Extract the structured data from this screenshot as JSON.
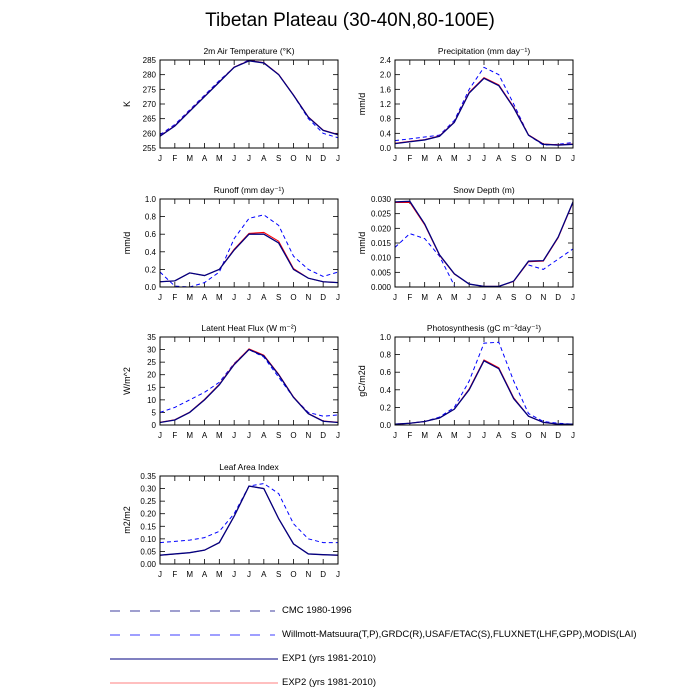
{
  "figure": {
    "title": "Tibetan Plateau (30-40N,80-100E)"
  },
  "chart_data": [
    {
      "type": "line",
      "title": "2m Air Temperature (°K)",
      "ylabel": "K",
      "ylim": [
        255,
        285
      ],
      "yticks": [
        255,
        260,
        265,
        270,
        275,
        280,
        285
      ],
      "yticklabels": [
        "255",
        "260",
        "265",
        "270",
        "275",
        "280",
        "285"
      ],
      "categories": [
        "J",
        "F",
        "M",
        "A",
        "M",
        "J",
        "J",
        "A",
        "S",
        "O",
        "N",
        "D",
        "J"
      ],
      "series": [
        {
          "name": "CMC 1980-1996",
          "values": [
            null,
            null,
            null,
            null,
            null,
            null,
            null,
            null,
            null,
            null,
            null,
            null,
            null
          ]
        },
        {
          "name": "Willmott-Matsuura(T,P),GRDC(R),USAF/ETAC(S),FLUXNET(LHF,GPP),MODIS(LAI)",
          "values": [
            259.5,
            263,
            268,
            273,
            278,
            282.5,
            285,
            284,
            280,
            273,
            265,
            260,
            258.5
          ]
        },
        {
          "name": "EXP1 (yrs 1981-2010)",
          "values": [
            259,
            262.5,
            267.5,
            272.5,
            277.5,
            282.5,
            284.7,
            284,
            280,
            273,
            265.5,
            261,
            259.5
          ]
        },
        {
          "name": "EXP2 (yrs 1981-2010)",
          "values": [
            259.1,
            262.6,
            267.6,
            272.6,
            277.6,
            282.6,
            284.8,
            284.1,
            280.1,
            273.1,
            265.6,
            261.1,
            259.6
          ]
        }
      ]
    },
    {
      "type": "line",
      "title": "Precipitation (mm day⁻¹)",
      "ylabel": "mm/d",
      "ylim": [
        0,
        2.4
      ],
      "yticks": [
        0,
        0.4,
        0.8,
        1.2,
        1.6,
        2.0,
        2.4
      ],
      "yticklabels": [
        "0.0",
        "0.4",
        "0.8",
        "1.2",
        "1.6",
        "2.0",
        "2.4"
      ],
      "categories": [
        "J",
        "F",
        "M",
        "A",
        "M",
        "J",
        "J",
        "A",
        "S",
        "O",
        "N",
        "D",
        "J"
      ],
      "series": [
        {
          "name": "CMC 1980-1996",
          "values": [
            null,
            null,
            null,
            null,
            null,
            null,
            null,
            null,
            null,
            null,
            null,
            null,
            null
          ]
        },
        {
          "name": "Willmott-Matsuura(T,P),GRDC(R),USAF/ETAC(S),FLUXNET(LHF,GPP),MODIS(LAI)",
          "values": [
            0.2,
            0.25,
            0.3,
            0.35,
            0.75,
            1.6,
            2.2,
            2.0,
            1.2,
            0.35,
            0.08,
            0.1,
            0.15
          ]
        },
        {
          "name": "EXP1 (yrs 1981-2010)",
          "values": [
            0.12,
            0.17,
            0.22,
            0.32,
            0.7,
            1.5,
            1.9,
            1.7,
            1.1,
            0.35,
            0.1,
            0.08,
            0.1
          ]
        },
        {
          "name": "EXP2 (yrs 1981-2010)",
          "values": [
            0.13,
            0.18,
            0.23,
            0.33,
            0.71,
            1.52,
            1.92,
            1.72,
            1.12,
            0.36,
            0.11,
            0.09,
            0.11
          ]
        }
      ]
    },
    {
      "type": "line",
      "title": "Runoff (mm day⁻¹)",
      "ylabel": "mm/d",
      "ylim": [
        0,
        1.0
      ],
      "yticks": [
        0,
        0.2,
        0.4,
        0.6,
        0.8,
        1.0
      ],
      "yticklabels": [
        "0.0",
        "0.2",
        "0.4",
        "0.6",
        "0.8",
        "1.0"
      ],
      "categories": [
        "J",
        "F",
        "M",
        "A",
        "M",
        "J",
        "J",
        "A",
        "S",
        "O",
        "N",
        "D",
        "J"
      ],
      "series": [
        {
          "name": "CMC 1980-1996",
          "values": [
            null,
            null,
            null,
            null,
            null,
            null,
            null,
            null,
            null,
            null,
            null,
            null,
            null
          ]
        },
        {
          "name": "Willmott-Matsuura(T,P),GRDC(R),USAF/ETAC(S),FLUXNET(LHF,GPP),MODIS(LAI)",
          "values": [
            0.17,
            0.01,
            0.0,
            0.05,
            0.17,
            0.55,
            0.78,
            0.82,
            0.7,
            0.35,
            0.2,
            0.12,
            0.17
          ]
        },
        {
          "name": "EXP1 (yrs 1981-2010)",
          "values": [
            0.06,
            0.07,
            0.16,
            0.13,
            0.2,
            0.42,
            0.6,
            0.6,
            0.5,
            0.2,
            0.1,
            0.06,
            0.05
          ]
        },
        {
          "name": "EXP2 (yrs 1981-2010)",
          "values": [
            0.06,
            0.07,
            0.16,
            0.13,
            0.2,
            0.43,
            0.61,
            0.62,
            0.52,
            0.21,
            0.1,
            0.06,
            0.05
          ]
        }
      ]
    },
    {
      "type": "line",
      "title": "Snow Depth (m)",
      "ylabel": "mm/d",
      "ylim": [
        0,
        0.03
      ],
      "yticks": [
        0,
        0.005,
        0.01,
        0.015,
        0.02,
        0.025,
        0.03
      ],
      "yticklabels": [
        "0.000",
        "0.005",
        "0.010",
        "0.015",
        "0.020",
        "0.025",
        "0.030"
      ],
      "categories": [
        "J",
        "F",
        "M",
        "A",
        "M",
        "J",
        "J",
        "A",
        "S",
        "O",
        "N",
        "D",
        "J"
      ],
      "series": [
        {
          "name": "CMC 1980-1996",
          "values": [
            null,
            null,
            null,
            null,
            null,
            null,
            null,
            null,
            null,
            null,
            null,
            null,
            null
          ]
        },
        {
          "name": "Willmott-Matsuura(T,P),GRDC(R),USAF/ETAC(S),FLUXNET(LHF,GPP),MODIS(LAI)",
          "values": [
            0.0135,
            0.0182,
            0.0165,
            0.0105,
            0.0005,
            null,
            null,
            null,
            null,
            0.0075,
            0.006,
            0.0095,
            0.013
          ]
        },
        {
          "name": "EXP1 (yrs 1981-2010)",
          "values": [
            0.029,
            0.0292,
            0.0215,
            0.011,
            0.0045,
            0.001,
            0.0002,
            0.0002,
            0.002,
            0.0088,
            0.009,
            0.017,
            0.029
          ]
        },
        {
          "name": "EXP2 (yrs 1981-2010)",
          "values": [
            0.0288,
            0.0288,
            0.0212,
            0.0108,
            0.0044,
            0.001,
            0.0002,
            0.0002,
            0.0019,
            0.0086,
            0.0088,
            0.0168,
            0.0288
          ]
        }
      ]
    },
    {
      "type": "line",
      "title": "Latent Heat Flux (W m⁻²)",
      "ylabel": "W/m^2",
      "ylim": [
        0,
        35
      ],
      "yticks": [
        0,
        5,
        10,
        15,
        20,
        25,
        30,
        35
      ],
      "yticklabels": [
        "0",
        "5",
        "10",
        "15",
        "20",
        "25",
        "30",
        "35"
      ],
      "categories": [
        "J",
        "F",
        "M",
        "A",
        "M",
        "J",
        "J",
        "A",
        "S",
        "O",
        "N",
        "D",
        "J"
      ],
      "series": [
        {
          "name": "CMC 1980-1996",
          "values": [
            null,
            null,
            null,
            null,
            null,
            null,
            null,
            null,
            null,
            null,
            null,
            null,
            null
          ]
        },
        {
          "name": "Willmott-Matsuura(T,P),GRDC(R),USAF/ETAC(S),FLUXNET(LHF,GPP),MODIS(LAI)",
          "values": [
            5,
            7,
            10,
            13,
            17,
            24.5,
            30,
            27,
            19,
            11,
            5,
            3.5,
            4
          ]
        },
        {
          "name": "EXP1 (yrs 1981-2010)",
          "values": [
            1,
            2,
            5,
            10,
            16,
            24,
            30,
            27.5,
            20,
            11,
            4.5,
            1.5,
            1
          ]
        },
        {
          "name": "EXP2 (yrs 1981-2010)",
          "values": [
            1.1,
            2.1,
            5.1,
            10.2,
            16.2,
            24.3,
            30.3,
            27.8,
            20.2,
            11.2,
            4.6,
            1.6,
            1.1
          ]
        }
      ]
    },
    {
      "type": "line",
      "title": "Photosynthesis (gC m⁻²day⁻¹)",
      "ylabel": "gC/m2d",
      "ylim": [
        0,
        1.0
      ],
      "yticks": [
        0,
        0.2,
        0.4,
        0.6,
        0.8,
        1.0
      ],
      "yticklabels": [
        "0.0",
        "0.2",
        "0.4",
        "0.6",
        "0.8",
        "1.0"
      ],
      "categories": [
        "J",
        "F",
        "M",
        "A",
        "M",
        "J",
        "J",
        "A",
        "S",
        "O",
        "N",
        "D",
        "J"
      ],
      "series": [
        {
          "name": "CMC 1980-1996",
          "values": [
            null,
            null,
            null,
            null,
            null,
            null,
            null,
            null,
            null,
            null,
            null,
            null,
            null
          ]
        },
        {
          "name": "Willmott-Matsuura(T,P),GRDC(R),USAF/ETAC(S),FLUXNET(LHF,GPP),MODIS(LAI)",
          "values": [
            0.01,
            0.02,
            0.04,
            0.09,
            0.2,
            0.5,
            0.93,
            0.94,
            0.5,
            0.13,
            0.04,
            0.02,
            0.01
          ]
        },
        {
          "name": "EXP1 (yrs 1981-2010)",
          "values": [
            0.01,
            0.02,
            0.04,
            0.08,
            0.18,
            0.4,
            0.73,
            0.64,
            0.3,
            0.1,
            0.03,
            0.01,
            0.01
          ]
        },
        {
          "name": "EXP2 (yrs 1981-2010)",
          "values": [
            0.01,
            0.02,
            0.04,
            0.08,
            0.18,
            0.41,
            0.74,
            0.65,
            0.31,
            0.1,
            0.03,
            0.01,
            0.01
          ]
        }
      ]
    },
    {
      "type": "line",
      "title": "Leaf Area Index",
      "ylabel": "m2/m2",
      "ylim": [
        0,
        0.35
      ],
      "yticks": [
        0,
        0.05,
        0.1,
        0.15,
        0.2,
        0.25,
        0.3,
        0.35
      ],
      "yticklabels": [
        "0.00",
        "0.05",
        "0.10",
        "0.15",
        "0.20",
        "0.25",
        "0.30",
        "0.35"
      ],
      "categories": [
        "J",
        "F",
        "M",
        "A",
        "M",
        "J",
        "J",
        "A",
        "S",
        "O",
        "N",
        "D",
        "J"
      ],
      "series": [
        {
          "name": "CMC 1980-1996",
          "values": [
            null,
            null,
            null,
            null,
            null,
            null,
            null,
            null,
            null,
            null,
            null,
            null,
            null
          ]
        },
        {
          "name": "Willmott-Matsuura(T,P),GRDC(R),USAF/ETAC(S),FLUXNET(LHF,GPP),MODIS(LAI)",
          "values": [
            0.085,
            0.09,
            0.095,
            0.105,
            0.13,
            0.2,
            0.31,
            0.32,
            0.28,
            0.16,
            0.1,
            0.085,
            0.085
          ]
        },
        {
          "name": "EXP1 (yrs 1981-2010)",
          "values": [
            0.035,
            0.04,
            0.045,
            0.055,
            0.085,
            0.19,
            0.31,
            0.3,
            0.18,
            0.08,
            0.04,
            0.037,
            0.035
          ]
        },
        {
          "name": "EXP2 (yrs 1981-2010)",
          "values": [
            0.035,
            0.04,
            0.045,
            0.055,
            0.085,
            0.19,
            0.31,
            0.3,
            0.18,
            0.08,
            0.04,
            0.037,
            0.035
          ]
        }
      ]
    }
  ],
  "legend": {
    "items": [
      {
        "label": "CMC 1980-1996",
        "color": "#000080",
        "dashed": true
      },
      {
        "label": "Willmott-Matsuura(T,P),GRDC(R),USAF/ETAC(S),FLUXNET(LHF,GPP),MODIS(LAI)",
        "color": "#0000ff",
        "dashed": true
      },
      {
        "label": "EXP1 (yrs 1981-2010)",
        "color": "#000080",
        "dashed": false
      },
      {
        "label": "EXP2 (yrs 1981-2010)",
        "color": "#ff0000",
        "dashed": false
      }
    ]
  }
}
